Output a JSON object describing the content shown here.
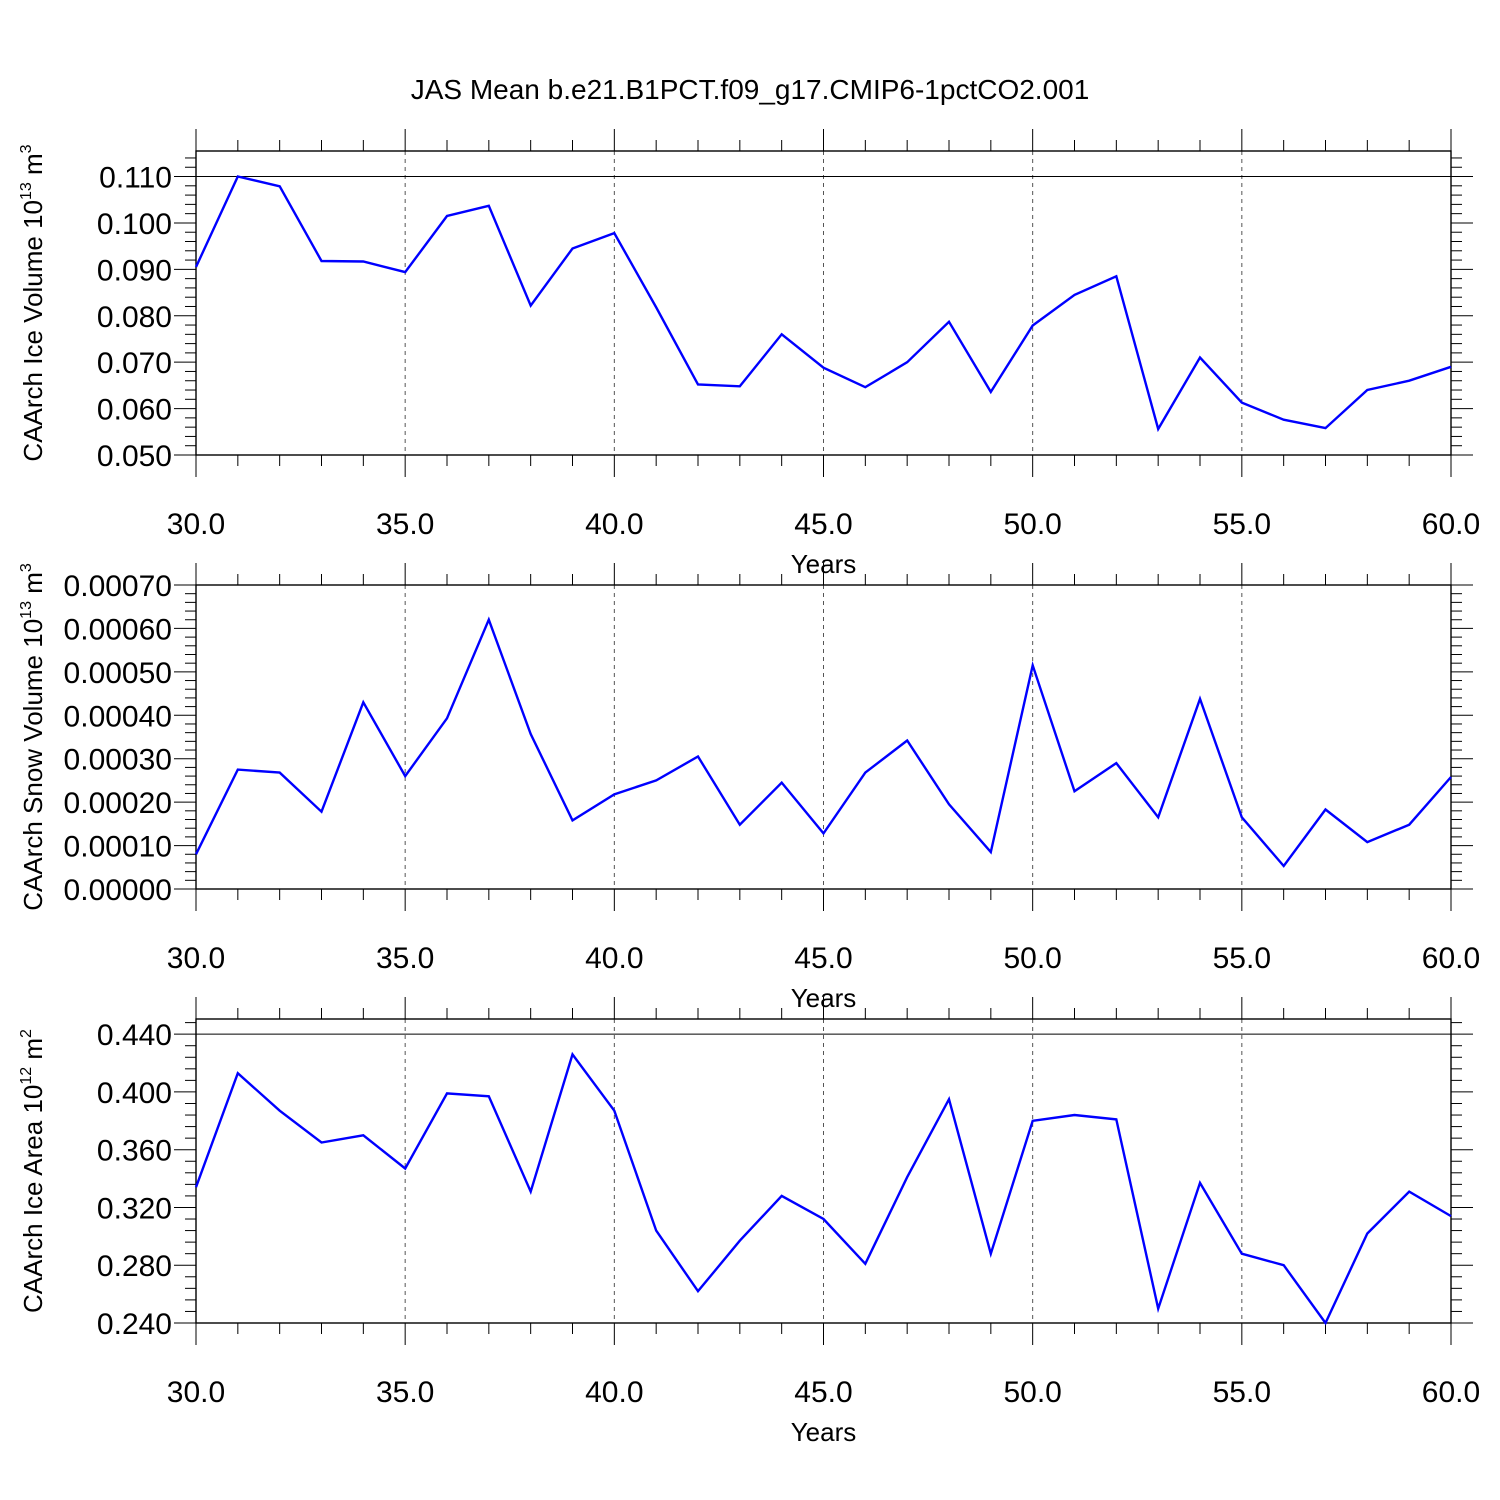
{
  "title": "JAS Mean b.e21.B1PCT.f09_g17.CMIP6-1pctCO2.001",
  "chart_data": [
    {
      "type": "line",
      "title": "JAS Mean b.e21.B1PCT.f09_g17.CMIP6-1pctCO2.001",
      "xlabel": "Years",
      "ylabel": "CAArch Ice Volume 10",
      "ylabel_sup": "13",
      "ylabel_unit": "m",
      "ylabel_unit_sup": "3",
      "xlim": [
        30,
        60
      ],
      "ylim": [
        0.05,
        0.1155
      ],
      "xticks": [
        30,
        35,
        40,
        45,
        50,
        55,
        60
      ],
      "xtick_labels": [
        "30.0",
        "35.0",
        "40.0",
        "45.0",
        "50.0",
        "55.0",
        "60.0"
      ],
      "yticks": [
        0.05,
        0.06,
        0.07,
        0.08,
        0.09,
        0.1,
        0.11
      ],
      "ytick_labels": [
        "0.050",
        "0.060",
        "0.070",
        "0.080",
        "0.090",
        "0.100",
        "0.110"
      ],
      "reference_line": 0.11,
      "grid": "vertical-dashed-at-major-x",
      "color": "#0000ff",
      "x": [
        30,
        31,
        32,
        33,
        34,
        35,
        36,
        37,
        38,
        39,
        40,
        41,
        42,
        43,
        44,
        45,
        46,
        47,
        48,
        49,
        50,
        51,
        52,
        53,
        54,
        55,
        56,
        57,
        58,
        59,
        60
      ],
      "values": [
        0.0905,
        0.11,
        0.1079,
        0.0918,
        0.0917,
        0.0894,
        0.1015,
        0.1037,
        0.0822,
        0.0945,
        0.0978,
        0.0818,
        0.0652,
        0.0648,
        0.076,
        0.0688,
        0.0646,
        0.07,
        0.0787,
        0.0636,
        0.0779,
        0.0845,
        0.0885,
        0.0556,
        0.071,
        0.0613,
        0.0576,
        0.0558,
        0.064,
        0.066,
        0.069
      ]
    },
    {
      "type": "line",
      "xlabel": "Years",
      "ylabel": "CAArch Snow Volume 10",
      "ylabel_sup": "13",
      "ylabel_unit": "m",
      "ylabel_unit_sup": "3",
      "xlim": [
        30,
        60
      ],
      "ylim": [
        0.0,
        0.0007
      ],
      "xticks": [
        30,
        35,
        40,
        45,
        50,
        55,
        60
      ],
      "xtick_labels": [
        "30.0",
        "35.0",
        "40.0",
        "45.0",
        "50.0",
        "55.0",
        "60.0"
      ],
      "yticks": [
        0.0,
        0.0001,
        0.0002,
        0.0003,
        0.0004,
        0.0005,
        0.0006,
        0.0007
      ],
      "ytick_labels": [
        "0.00000",
        "0.00010",
        "0.00020",
        "0.00030",
        "0.00040",
        "0.00050",
        "0.00060",
        "0.00070"
      ],
      "grid": "vertical-dashed-at-major-x",
      "color": "#0000ff",
      "x": [
        30,
        31,
        32,
        33,
        34,
        35,
        36,
        37,
        38,
        39,
        40,
        41,
        42,
        43,
        44,
        45,
        46,
        47,
        48,
        49,
        50,
        51,
        52,
        53,
        54,
        55,
        56,
        57,
        58,
        59,
        60
      ],
      "values": [
        8e-05,
        0.000275,
        0.000268,
        0.000178,
        0.00043,
        0.00026,
        0.000393,
        0.00062,
        0.000357,
        0.000158,
        0.000218,
        0.00025,
        0.000305,
        0.000148,
        0.000245,
        0.000128,
        0.000268,
        0.000342,
        0.000195,
        8.5e-05,
        0.000515,
        0.000225,
        0.00029,
        0.000165,
        0.000438,
        0.000165,
        5.3e-05,
        0.000183,
        0.000108,
        0.000148,
        0.000258
      ]
    },
    {
      "type": "line",
      "xlabel": "Years",
      "ylabel": "CAArch Ice Area 10",
      "ylabel_sup": "12",
      "ylabel_unit": "m",
      "ylabel_unit_sup": "2",
      "xlim": [
        30,
        60
      ],
      "ylim": [
        0.24,
        0.4505
      ],
      "xticks": [
        30,
        35,
        40,
        45,
        50,
        55,
        60
      ],
      "xtick_labels": [
        "30.0",
        "35.0",
        "40.0",
        "45.0",
        "50.0",
        "55.0",
        "60.0"
      ],
      "yticks": [
        0.24,
        0.28,
        0.32,
        0.36,
        0.4,
        0.44
      ],
      "ytick_labels": [
        "0.240",
        "0.280",
        "0.320",
        "0.360",
        "0.400",
        "0.440"
      ],
      "reference_line": 0.44,
      "grid": "vertical-dashed-at-major-x",
      "color": "#0000ff",
      "x": [
        30,
        31,
        32,
        33,
        34,
        35,
        36,
        37,
        38,
        39,
        40,
        41,
        42,
        43,
        44,
        45,
        46,
        47,
        48,
        49,
        50,
        51,
        52,
        53,
        54,
        55,
        56,
        57,
        58,
        59,
        60
      ],
      "values": [
        0.334,
        0.413,
        0.387,
        0.365,
        0.37,
        0.347,
        0.399,
        0.397,
        0.331,
        0.426,
        0.387,
        0.304,
        0.262,
        0.297,
        0.328,
        0.312,
        0.281,
        0.341,
        0.395,
        0.288,
        0.38,
        0.384,
        0.381,
        0.25,
        0.337,
        0.288,
        0.28,
        0.24,
        0.302,
        0.331,
        0.314
      ]
    }
  ]
}
